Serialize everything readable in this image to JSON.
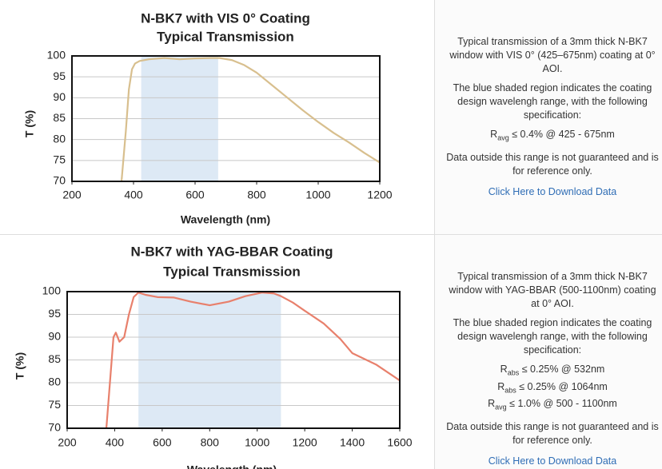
{
  "chart_data": [
    {
      "type": "line",
      "title": "N-BK7 with VIS 0° Coating",
      "subtitle": "Typical Transmission",
      "x_label": "Wavelength (nm)",
      "y_label": "T (%)",
      "xlim": [
        200,
        1200
      ],
      "xticks": [
        200,
        400,
        600,
        800,
        1000,
        1200
      ],
      "ylim": [
        70,
        100
      ],
      "yticks": [
        70,
        75,
        80,
        85,
        90,
        95,
        100
      ],
      "grid": true,
      "highlight": [
        425,
        675
      ],
      "highlight_color": "#dde9f5",
      "series": [
        {
          "name": "Transmission",
          "color": "#d8bf8e",
          "x": [
            361,
            375,
            385,
            395,
            405,
            420,
            450,
            500,
            550,
            600,
            650,
            680,
            720,
            760,
            800,
            850,
            900,
            950,
            1000,
            1050,
            1100,
            1150,
            1200
          ],
          "values": [
            70,
            82,
            92,
            96.8,
            98.2,
            98.8,
            99.2,
            99.5,
            99.2,
            99.4,
            99.5,
            99.5,
            99,
            97.8,
            96,
            93,
            90,
            87,
            84.2,
            81.6,
            79.3,
            76.8,
            74.5
          ]
        }
      ]
    },
    {
      "type": "line",
      "title": "N-BK7 with YAG-BBAR Coating",
      "subtitle": "Typical Transmission",
      "x_label": "Wavelength (nm)",
      "y_label": "T (%)",
      "xlim": [
        200,
        1600
      ],
      "xticks": [
        200,
        400,
        600,
        800,
        1000,
        1200,
        1400,
        1600
      ],
      "ylim": [
        70,
        100
      ],
      "yticks": [
        70,
        75,
        80,
        85,
        90,
        95,
        100
      ],
      "grid": true,
      "highlight": [
        500,
        1100
      ],
      "highlight_color": "#dde9f5",
      "series": [
        {
          "name": "Transmission",
          "color": "#e8806c",
          "x": [
            365,
            380,
            395,
            405,
            420,
            440,
            460,
            480,
            500,
            530,
            580,
            650,
            720,
            800,
            880,
            950,
            1020,
            1070,
            1100,
            1150,
            1200,
            1280,
            1350,
            1400,
            1500,
            1600
          ],
          "values": [
            70,
            80,
            90,
            91,
            89,
            90,
            95,
            98.8,
            99.8,
            99.3,
            98.8,
            98.7,
            97.8,
            97,
            97.8,
            99,
            99.8,
            99.6,
            99,
            97.6,
            95.8,
            93,
            89.6,
            86.5,
            84,
            80.5
          ]
        }
      ]
    }
  ],
  "panels": [
    {
      "paragraphs": [
        "Typical transmission of a 3mm thick N-BK7 window with VIS 0° (425–675nm) coating at 0° AOI.",
        "The blue shaded region indicates the coating design wavelengh range, with the following specification:"
      ],
      "specs": [
        {
          "symbol": "R",
          "sub": "avg",
          "text": "≤ 0.4% @ 425 - 675nm"
        }
      ],
      "note": "Data outside this range is not guaranteed and is for reference only.",
      "link": "Click Here to Download Data"
    },
    {
      "paragraphs": [
        "Typical transmission of a 3mm thick N-BK7 window with YAG-BBAR (500-1100nm) coating at 0° AOI.",
        "The blue shaded region indicates the coating design wavelengh range, with the following specification:"
      ],
      "specs": [
        {
          "symbol": "R",
          "sub": "abs",
          "text": "≤ 0.25% @ 532nm"
        },
        {
          "symbol": "R",
          "sub": "abs",
          "text": "≤ 0.25% @ 1064nm"
        },
        {
          "symbol": "R",
          "sub": "avg",
          "text": "≤ 1.0% @ 500 - 1100nm"
        }
      ],
      "note": "Data outside this range is not guaranteed and is for reference only.",
      "link": "Click Here to Download Data"
    }
  ]
}
